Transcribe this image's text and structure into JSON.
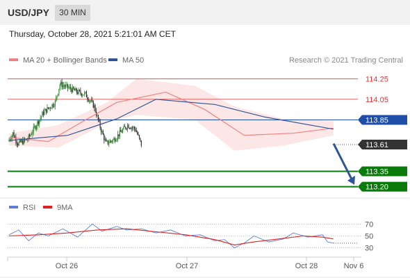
{
  "header": {
    "symbol": "USD/JPY",
    "timeframe": "30 MIN",
    "datetime": "Thursday, October 28, 2021 5:21:01 AM CET"
  },
  "chart_data": [
    {
      "type": "candlestick",
      "legend": [
        {
          "name": "MA 20 + Bollinger Bands",
          "color": "#f08080"
        },
        {
          "name": "MA 50",
          "color": "#2f5597"
        }
      ],
      "legend_placement": "top-left",
      "credit": "Research © 2021 Trading Central",
      "ylim": [
        113.11,
        114.34
      ],
      "levels": [
        {
          "value": 114.25,
          "label": "114.25",
          "kind": "resistance",
          "color": "#e03030"
        },
        {
          "value": 114.05,
          "label": "114.05",
          "kind": "resistance",
          "color": "#e03030"
        },
        {
          "value": 113.85,
          "label": "113.85",
          "kind": "pivot",
          "color": "#1f4ea8"
        },
        {
          "value": 113.61,
          "label": "113.61",
          "kind": "last-price",
          "color": "#333333"
        },
        {
          "value": 113.35,
          "label": "113.35",
          "kind": "support",
          "color": "#0a7a0a"
        },
        {
          "value": 113.2,
          "label": "113.20",
          "kind": "support",
          "color": "#0a7a0a"
        }
      ],
      "projection_arrow": {
        "from": 113.62,
        "to": 113.22,
        "color": "#2f5597"
      },
      "price_segments": [
        {
          "n": 5,
          "from": 113.64,
          "to": 113.72
        },
        {
          "n": 5,
          "from": 113.72,
          "to": 113.62
        },
        {
          "n": 10,
          "from": 113.62,
          "to": 113.66
        },
        {
          "n": 16,
          "from": 113.66,
          "to": 113.92
        },
        {
          "n": 12,
          "from": 113.92,
          "to": 114.02
        },
        {
          "n": 5,
          "from": 114.02,
          "to": 114.2
        },
        {
          "n": 18,
          "from": 114.2,
          "to": 114.12
        },
        {
          "n": 8,
          "from": 114.12,
          "to": 114.1
        },
        {
          "n": 9,
          "from": 114.1,
          "to": 113.98
        },
        {
          "n": 6,
          "from": 113.98,
          "to": 113.78
        },
        {
          "n": 6,
          "from": 113.78,
          "to": 113.62
        },
        {
          "n": 8,
          "from": 113.62,
          "to": 113.66
        },
        {
          "n": 14,
          "from": 113.66,
          "to": 113.8
        },
        {
          "n": 8,
          "from": 113.8,
          "to": 113.76
        },
        {
          "n": 6,
          "from": 113.76,
          "to": 113.61
        }
      ],
      "ma20_path": [
        [
          0,
          113.68
        ],
        [
          40,
          113.64
        ],
        [
          80,
          113.86
        ],
        [
          110,
          114.02
        ],
        [
          160,
          114.12
        ],
        [
          200,
          113.95
        ],
        [
          240,
          113.7
        ],
        [
          290,
          113.72
        ],
        [
          331,
          113.77
        ]
      ],
      "ma50_path": [
        [
          0,
          113.65
        ],
        [
          60,
          113.7
        ],
        [
          110,
          113.86
        ],
        [
          150,
          114.05
        ],
        [
          210,
          114.0
        ],
        [
          260,
          113.88
        ],
        [
          331,
          113.76
        ]
      ],
      "bb_upper": [
        [
          0,
          113.72
        ],
        [
          50,
          113.8
        ],
        [
          100,
          114.02
        ],
        [
          130,
          114.25
        ],
        [
          190,
          114.18
        ],
        [
          230,
          113.98
        ],
        [
          280,
          113.86
        ],
        [
          331,
          113.84
        ]
      ],
      "bb_lower": [
        [
          0,
          113.6
        ],
        [
          50,
          113.58
        ],
        [
          100,
          113.82
        ],
        [
          130,
          113.9
        ],
        [
          190,
          113.85
        ],
        [
          230,
          113.55
        ],
        [
          280,
          113.6
        ],
        [
          331,
          113.7
        ]
      ]
    },
    {
      "type": "line",
      "legend": [
        {
          "name": "RSI",
          "color": "#5b7fd6"
        },
        {
          "name": "9MA",
          "color": "#e02020"
        }
      ],
      "ylim": [
        18,
        82
      ],
      "yticks": [
        70,
        50,
        30
      ],
      "x_ticks": [
        "Oct 26",
        "Oct 27",
        "Oct 28",
        "Nov 6"
      ],
      "rsi_path": [
        [
          0,
          52
        ],
        [
          10,
          60
        ],
        [
          20,
          42
        ],
        [
          30,
          55
        ],
        [
          40,
          50
        ],
        [
          55,
          62
        ],
        [
          70,
          48
        ],
        [
          85,
          70
        ],
        [
          95,
          58
        ],
        [
          110,
          66
        ],
        [
          120,
          60
        ],
        [
          135,
          62
        ],
        [
          150,
          55
        ],
        [
          165,
          60
        ],
        [
          180,
          50
        ],
        [
          195,
          52
        ],
        [
          210,
          42
        ],
        [
          220,
          44
        ],
        [
          230,
          30
        ],
        [
          240,
          38
        ],
        [
          250,
          50
        ],
        [
          265,
          40
        ],
        [
          280,
          45
        ],
        [
          290,
          55
        ],
        [
          305,
          48
        ],
        [
          320,
          52
        ],
        [
          325,
          40
        ],
        [
          331,
          38
        ]
      ],
      "ma9_path": [
        [
          0,
          50
        ],
        [
          30,
          52
        ],
        [
          60,
          55
        ],
        [
          90,
          60
        ],
        [
          120,
          62
        ],
        [
          150,
          57
        ],
        [
          180,
          52
        ],
        [
          210,
          44
        ],
        [
          230,
          35
        ],
        [
          250,
          40
        ],
        [
          270,
          44
        ],
        [
          300,
          50
        ],
        [
          320,
          48
        ],
        [
          331,
          45
        ]
      ]
    }
  ]
}
